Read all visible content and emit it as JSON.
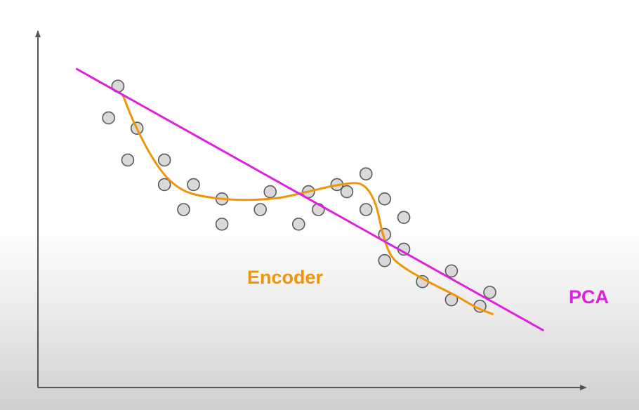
{
  "labels": {
    "encoder": "Encoder",
    "pca": "PCA"
  },
  "colors": {
    "encoder": "#f0950a",
    "pca": "#e020e0",
    "point_fill": "#d9d9d9",
    "point_stroke": "#5a5a5a",
    "axis": "#555555"
  },
  "chart_data": {
    "type": "scatter",
    "xlim": [
      0,
      100
    ],
    "ylim": [
      0,
      100
    ],
    "points": [
      [
        14.6,
        84.5
      ],
      [
        12.9,
        75.6
      ],
      [
        18.1,
        72.7
      ],
      [
        16.4,
        63.8
      ],
      [
        23.1,
        63.8
      ],
      [
        23.1,
        56.9
      ],
      [
        28.4,
        56.9
      ],
      [
        26.6,
        49.9
      ],
      [
        33.6,
        52.9
      ],
      [
        33.6,
        45.8
      ],
      [
        40.6,
        49.9
      ],
      [
        42.4,
        54.9
      ],
      [
        47.6,
        45.8
      ],
      [
        49.4,
        54.9
      ],
      [
        51.2,
        49.9
      ],
      [
        54.6,
        56.9
      ],
      [
        56.4,
        54.9
      ],
      [
        59.9,
        59.9
      ],
      [
        59.9,
        49.9
      ],
      [
        63.3,
        52.9
      ],
      [
        63.3,
        42.9
      ],
      [
        66.8,
        47.7
      ],
      [
        63.3,
        35.6
      ],
      [
        66.8,
        38.8
      ],
      [
        70.2,
        29.7
      ],
      [
        75.5,
        32.7
      ],
      [
        75.5,
        24.6
      ],
      [
        80.7,
        22.8
      ],
      [
        82.5,
        26.7
      ]
    ],
    "pca_line": [
      [
        7.1,
        89.3
      ],
      [
        92.2,
        16.1
      ]
    ],
    "encoder_curve": [
      [
        15.5,
        82.0
      ],
      [
        17.5,
        74.5
      ],
      [
        20.5,
        65.5
      ],
      [
        23.5,
        59.0
      ],
      [
        27.0,
        55.0
      ],
      [
        32.0,
        53.2
      ],
      [
        38.0,
        52.6
      ],
      [
        44.0,
        53.2
      ],
      [
        49.5,
        55.0
      ],
      [
        54.5,
        56.7
      ],
      [
        59.0,
        57.0
      ],
      [
        61.5,
        52.0
      ],
      [
        63.0,
        43.0
      ],
      [
        64.5,
        37.0
      ],
      [
        67.0,
        33.5
      ],
      [
        71.5,
        29.5
      ],
      [
        76.0,
        26.0
      ],
      [
        80.0,
        22.5
      ],
      [
        83.0,
        20.6
      ]
    ]
  }
}
